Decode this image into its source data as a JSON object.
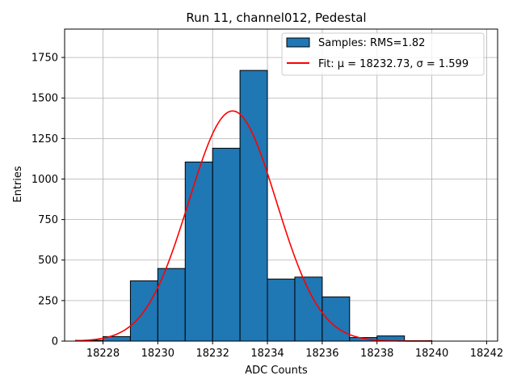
{
  "chart_data": {
    "type": "bar",
    "title": "Run 11, channel012, Pedestal",
    "xlabel": "ADC Counts",
    "ylabel": "Entries",
    "xlim": [
      18226.6,
      18242.4
    ],
    "ylim": [
      0,
      1925
    ],
    "grid": true,
    "legend_placement": "top-right",
    "x_ticks": [
      18228,
      18230,
      18232,
      18234,
      18236,
      18238,
      18240,
      18242
    ],
    "x_tick_labels": [
      "18228",
      "18230",
      "18232",
      "18234",
      "18236",
      "18238",
      "18240",
      "18242"
    ],
    "y_ticks": [
      0,
      250,
      500,
      750,
      1000,
      1250,
      1500,
      1750
    ],
    "y_tick_labels": [
      "0",
      "250",
      "500",
      "750",
      "1000",
      "1250",
      "1500",
      "1750"
    ],
    "bar_color": "#1f77b4",
    "edge_color": "#000000",
    "fit_color": "#ff0000",
    "histogram": {
      "name": "Samples: RMS=1.82",
      "bins": [
        {
          "x0": 18227,
          "x1": 18228,
          "value": 5
        },
        {
          "x0": 18228,
          "x1": 18229,
          "value": 28
        },
        {
          "x0": 18229,
          "x1": 18230,
          "value": 372
        },
        {
          "x0": 18230,
          "x1": 18231,
          "value": 448
        },
        {
          "x0": 18231,
          "x1": 18232,
          "value": 1105
        },
        {
          "x0": 18232,
          "x1": 18233,
          "value": 1190
        },
        {
          "x0": 18233,
          "x1": 18234,
          "value": 1670
        },
        {
          "x0": 18234,
          "x1": 18235,
          "value": 383
        },
        {
          "x0": 18235,
          "x1": 18236,
          "value": 395
        },
        {
          "x0": 18236,
          "x1": 18237,
          "value": 273
        },
        {
          "x0": 18237,
          "x1": 18238,
          "value": 22
        },
        {
          "x0": 18238,
          "x1": 18239,
          "value": 32
        },
        {
          "x0": 18239,
          "x1": 18240,
          "value": 3
        }
      ]
    },
    "fit": {
      "name": "Fit: μ = 18232.73, σ = 1.599",
      "mu": 18232.73,
      "sigma": 1.599,
      "amplitude": 1420,
      "x_range": [
        18227,
        18240
      ]
    }
  }
}
